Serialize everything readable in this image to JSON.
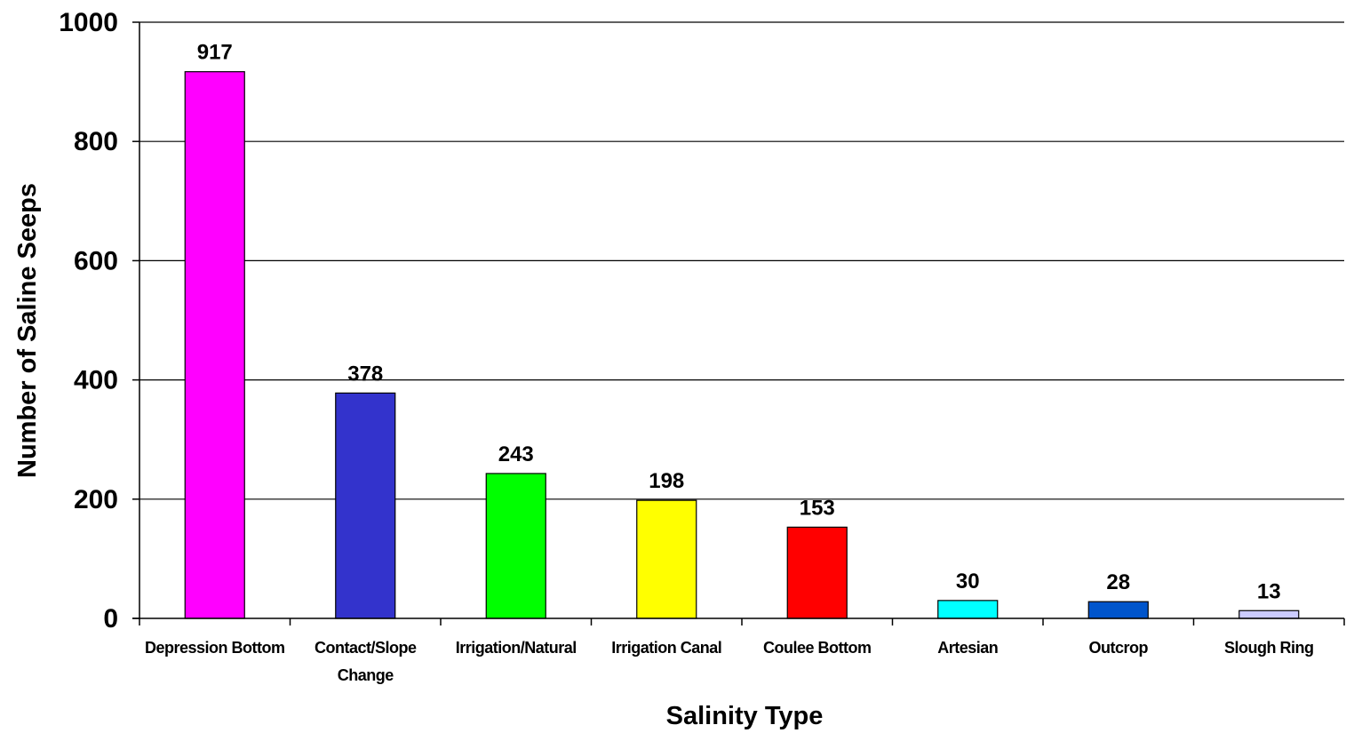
{
  "chart_data": {
    "type": "bar",
    "title": "",
    "xlabel": "Salinity Type",
    "ylabel": "Number of Saline Seeps",
    "ylim": [
      0,
      1000
    ],
    "yticks": [
      0,
      200,
      400,
      600,
      800,
      1000
    ],
    "ytick_labels": [
      "0",
      "200",
      "400",
      "600",
      "800",
      "1000"
    ],
    "grid": true,
    "legend": "none",
    "categories": [
      [
        "Depression Bottom"
      ],
      [
        "Contact/Slope",
        "Change"
      ],
      [
        "Irrigation/Natural"
      ],
      [
        "Irrigation Canal"
      ],
      [
        "Coulee Bottom"
      ],
      [
        "Artesian"
      ],
      [
        "Outcrop"
      ],
      [
        "Slough Ring"
      ]
    ],
    "values": [
      917,
      378,
      243,
      198,
      153,
      30,
      28,
      13
    ],
    "data_labels": [
      "917",
      "378",
      "243",
      "198",
      "153",
      "30",
      "28",
      "13"
    ],
    "colors": [
      "#FF00FF",
      "#3333CC",
      "#00FF00",
      "#FFFF00",
      "#FF0000",
      "#00FFFF",
      "#0055CC",
      "#CCCCFF"
    ]
  }
}
